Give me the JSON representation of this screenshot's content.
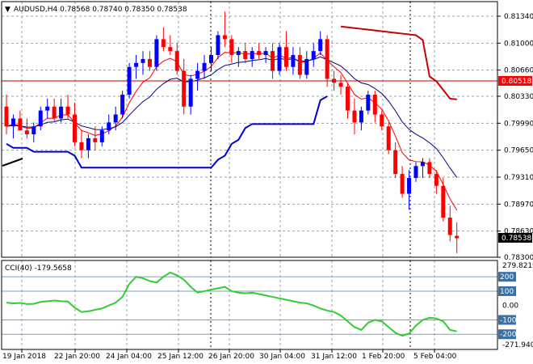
{
  "header": {
    "dropdown_glyph": "▼",
    "symbol_line": "AUDUSD,H4  0.78568 0.78740 0.78350 0.78538",
    "dropdown_icon": "triangle-down-icon"
  },
  "indicator": {
    "label": "CCI(40) -179.5658",
    "color": "#32cd32"
  },
  "colors": {
    "bull": "#0000ff",
    "bear": "#ff0000",
    "ma_fast": "#ff0000",
    "ma_slow": "#000080",
    "env_upper": "#cc0000",
    "env_lower": "#0000cc",
    "grid": "#9aa0a8",
    "level_line": "#c00000",
    "price_tag_bg": "#000000",
    "level_tag_bg": "#ff0000",
    "cci_tag_bg": "#3c6fa3"
  },
  "chart_data": [
    {
      "type": "candlestick",
      "title": "AUDUSD,H4",
      "ylim": [
        0.783,
        0.815
      ],
      "yticks": [
        "0.81340",
        "0.81000",
        "0.80660",
        "0.80330",
        "0.79990",
        "0.79650",
        "0.79310",
        "0.78970",
        "0.78630",
        "0.78300"
      ],
      "xticks": [
        "19 Jan 2018",
        "22 Jan 20:00",
        "24 Jan 04:00",
        "25 Jan 12:00",
        "26 Jan 20:00",
        "30 Jan 04:00",
        "31 Jan 12:00",
        "1 Feb 20:00",
        "5 Feb 04:00"
      ],
      "horizontal_level": {
        "value": 0.80518,
        "label": "0.80518"
      },
      "current_price": {
        "value": 0.78538,
        "label": "0.78538"
      },
      "candles": [
        [
          0.802,
          0.8035,
          0.7985,
          0.7995
        ],
        [
          0.7995,
          0.801,
          0.798,
          0.8005
        ],
        [
          0.8005,
          0.8015,
          0.799,
          0.799
        ],
        [
          0.799,
          0.8005,
          0.798,
          0.7985
        ],
        [
          0.7985,
          0.8,
          0.7975,
          0.7995
        ],
        [
          0.7995,
          0.802,
          0.799,
          0.8015
        ],
        [
          0.8015,
          0.803,
          0.8005,
          0.802
        ],
        [
          0.802,
          0.803,
          0.8,
          0.8005
        ],
        [
          0.8005,
          0.803,
          0.8,
          0.802
        ],
        [
          0.802,
          0.8035,
          0.8005,
          0.801
        ],
        [
          0.801,
          0.8025,
          0.797,
          0.7975
        ],
        [
          0.7975,
          0.799,
          0.7955,
          0.7965
        ],
        [
          0.7965,
          0.7985,
          0.7955,
          0.798
        ],
        [
          0.798,
          0.7995,
          0.7965,
          0.7975
        ],
        [
          0.7975,
          0.7995,
          0.797,
          0.799
        ],
        [
          0.799,
          0.801,
          0.7985,
          0.8
        ],
        [
          0.8,
          0.802,
          0.799,
          0.801
        ],
        [
          0.801,
          0.804,
          0.8005,
          0.8035
        ],
        [
          0.8035,
          0.8075,
          0.803,
          0.807
        ],
        [
          0.807,
          0.8085,
          0.8055,
          0.8075
        ],
        [
          0.8075,
          0.809,
          0.806,
          0.808
        ],
        [
          0.808,
          0.809,
          0.8065,
          0.807
        ],
        [
          0.807,
          0.811,
          0.8065,
          0.8105
        ],
        [
          0.8105,
          0.812,
          0.809,
          0.8095
        ],
        [
          0.8095,
          0.811,
          0.8085,
          0.809
        ],
        [
          0.809,
          0.81,
          0.806,
          0.8065
        ],
        [
          0.8065,
          0.808,
          0.801,
          0.802
        ],
        [
          0.802,
          0.806,
          0.801,
          0.8055
        ],
        [
          0.8055,
          0.8075,
          0.804,
          0.8065
        ],
        [
          0.8065,
          0.8085,
          0.8055,
          0.8075
        ],
        [
          0.8075,
          0.8095,
          0.8065,
          0.8085
        ],
        [
          0.8085,
          0.8115,
          0.808,
          0.811
        ],
        [
          0.811,
          0.814,
          0.8095,
          0.8105
        ],
        [
          0.8105,
          0.811,
          0.8075,
          0.8085
        ],
        [
          0.8085,
          0.8095,
          0.807,
          0.809
        ],
        [
          0.809,
          0.81,
          0.8075,
          0.808
        ],
        [
          0.808,
          0.8095,
          0.807,
          0.809
        ],
        [
          0.809,
          0.81,
          0.808,
          0.8085
        ],
        [
          0.8085,
          0.8095,
          0.8075,
          0.809
        ],
        [
          0.809,
          0.81,
          0.8055,
          0.8065
        ],
        [
          0.8065,
          0.81,
          0.806,
          0.8095
        ],
        [
          0.8095,
          0.8115,
          0.8065,
          0.807
        ],
        [
          0.807,
          0.8095,
          0.806,
          0.8085
        ],
        [
          0.8085,
          0.8095,
          0.8055,
          0.806
        ],
        [
          0.806,
          0.809,
          0.8055,
          0.808
        ],
        [
          0.808,
          0.81,
          0.807,
          0.809
        ],
        [
          0.809,
          0.8115,
          0.8085,
          0.8105
        ],
        [
          0.8105,
          0.811,
          0.8045,
          0.8055
        ],
        [
          0.8055,
          0.8065,
          0.804,
          0.805
        ],
        [
          0.805,
          0.806,
          0.8035,
          0.8045
        ],
        [
          0.8045,
          0.805,
          0.8005,
          0.8015
        ],
        [
          0.8015,
          0.803,
          0.7985,
          0.8
        ],
        [
          0.8,
          0.802,
          0.799,
          0.8015
        ],
        [
          0.8015,
          0.804,
          0.801,
          0.8035
        ],
        [
          0.8035,
          0.804,
          0.8,
          0.801
        ],
        [
          0.801,
          0.8015,
          0.799,
          0.7995
        ],
        [
          0.7995,
          0.8,
          0.796,
          0.7965
        ],
        [
          0.7965,
          0.7975,
          0.793,
          0.7935
        ],
        [
          0.7935,
          0.7945,
          0.7905,
          0.791
        ],
        [
          0.791,
          0.794,
          0.789,
          0.793
        ],
        [
          0.793,
          0.795,
          0.7925,
          0.7945
        ],
        [
          0.7945,
          0.7955,
          0.793,
          0.795
        ],
        [
          0.795,
          0.7955,
          0.793,
          0.7935
        ],
        [
          0.7935,
          0.794,
          0.791,
          0.792
        ],
        [
          0.792,
          0.793,
          0.7875,
          0.788
        ],
        [
          0.788,
          0.7895,
          0.785,
          0.7858
        ],
        [
          0.7857,
          0.7874,
          0.7835,
          0.7854
        ]
      ]
    },
    {
      "type": "line",
      "title": "CCI(40) -179.5658",
      "ylim": [
        -271.9403,
        279.8219
      ],
      "yticks": [
        "279.8219",
        "200",
        "100",
        "0.00",
        "-100",
        "-200",
        "-271.9403"
      ],
      "levels": [
        200,
        100,
        -100,
        -200
      ],
      "values": [
        20,
        15,
        18,
        10,
        12,
        25,
        30,
        35,
        30,
        28,
        -15,
        -45,
        -40,
        -30,
        -20,
        0,
        20,
        60,
        150,
        200,
        190,
        170,
        160,
        200,
        230,
        210,
        180,
        130,
        90,
        100,
        110,
        120,
        130,
        100,
        90,
        85,
        90,
        80,
        70,
        60,
        50,
        40,
        30,
        20,
        15,
        0,
        -20,
        -35,
        -45,
        -70,
        -110,
        -150,
        -170,
        -120,
        -100,
        -110,
        -150,
        -190,
        -210,
        -195,
        -140,
        -100,
        -85,
        -90,
        -110,
        -170,
        -180
      ]
    }
  ]
}
